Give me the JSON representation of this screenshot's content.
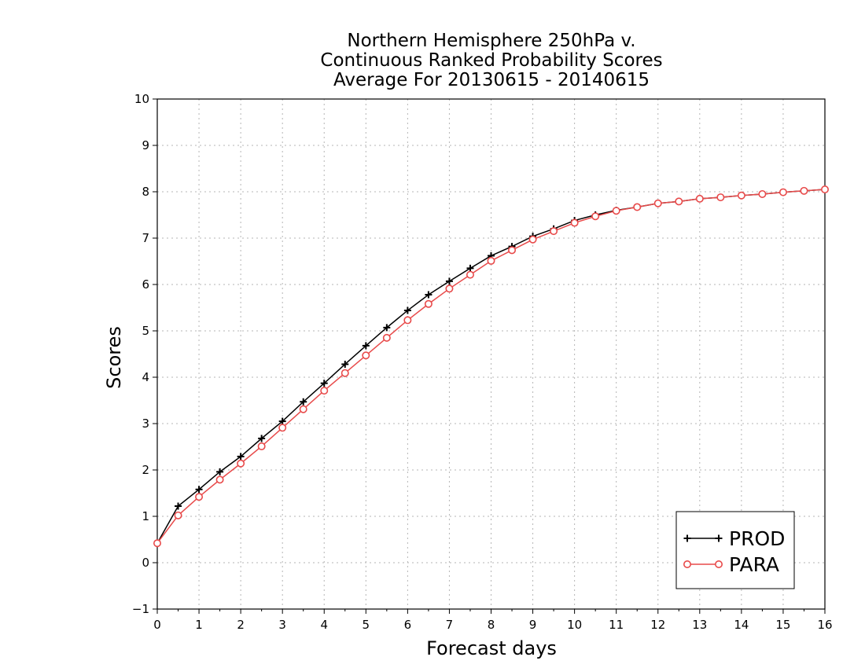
{
  "chart_data": {
    "type": "line",
    "title": [
      "Northern Hemisphere 250hPa v.",
      "Continuous Ranked Probability Scores",
      "Average For 20130615 - 20140615"
    ],
    "xlabel": "Forecast days",
    "ylabel": "Scores",
    "xlim": [
      0,
      16
    ],
    "ylim": [
      -1,
      10
    ],
    "xticks": [
      0,
      1,
      2,
      3,
      4,
      5,
      6,
      7,
      8,
      9,
      10,
      11,
      12,
      13,
      14,
      15,
      16
    ],
    "yticks": [
      -1,
      0,
      1,
      2,
      3,
      4,
      5,
      6,
      7,
      8,
      9,
      10
    ],
    "grid": true,
    "legend_position": "bottom-right",
    "x": [
      0,
      0.5,
      1,
      1.5,
      2,
      2.5,
      3,
      3.5,
      4,
      4.5,
      5,
      5.5,
      6,
      6.5,
      7,
      7.5,
      8,
      8.5,
      9,
      9.5,
      10,
      10.5,
      11,
      11.5,
      12,
      12.5,
      13,
      13.5,
      14,
      14.5,
      15,
      15.5,
      16
    ],
    "series": [
      {
        "name": "PROD",
        "color": "#000000",
        "marker": "plus",
        "values": [
          0.42,
          1.22,
          1.58,
          1.96,
          2.29,
          2.68,
          3.05,
          3.47,
          3.87,
          4.28,
          4.68,
          5.07,
          5.44,
          5.78,
          6.07,
          6.35,
          6.62,
          6.82,
          7.04,
          7.2,
          7.38,
          7.5,
          7.6,
          7.67,
          7.75,
          7.79,
          7.85,
          7.88,
          7.92,
          7.95,
          7.99,
          8.02,
          8.05
        ]
      },
      {
        "name": "PARA",
        "color": "#e84a4a",
        "marker": "circle",
        "values": [
          0.42,
          1.02,
          1.42,
          1.79,
          2.14,
          2.51,
          2.91,
          3.31,
          3.71,
          4.09,
          4.47,
          4.85,
          5.23,
          5.58,
          5.91,
          6.21,
          6.51,
          6.74,
          6.97,
          7.15,
          7.33,
          7.47,
          7.59,
          7.67,
          7.75,
          7.79,
          7.85,
          7.88,
          7.92,
          7.95,
          7.99,
          8.02,
          8.05
        ]
      }
    ]
  }
}
